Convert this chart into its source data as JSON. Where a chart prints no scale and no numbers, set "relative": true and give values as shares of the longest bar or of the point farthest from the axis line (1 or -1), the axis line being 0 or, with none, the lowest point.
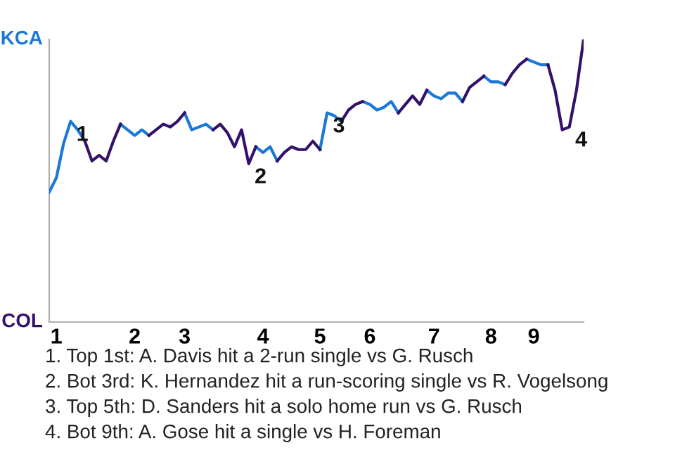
{
  "chart_data": {
    "type": "line",
    "categories": [
      null,
      "1",
      null,
      null,
      null,
      null,
      null,
      null,
      null,
      null,
      null,
      null,
      "2",
      null,
      null,
      null,
      null,
      null,
      null,
      "3",
      null,
      null,
      null,
      null,
      null,
      null,
      null,
      null,
      null,
      null,
      "4",
      null,
      null,
      null,
      null,
      null,
      null,
      null,
      "5",
      null,
      null,
      null,
      null,
      null,
      null,
      "6",
      null,
      null,
      null,
      null,
      null,
      null,
      null,
      null,
      "7",
      null,
      null,
      null,
      null,
      null,
      null,
      null,
      "8",
      null,
      null,
      null,
      null,
      null,
      "9",
      null,
      null,
      null,
      null,
      null,
      null,
      null
    ],
    "series": [
      {
        "name": "KCA",
        "color": "#1a78d6",
        "values": [
          0.46,
          0.51,
          0.63,
          0.71,
          0.68,
          0.64,
          null,
          null,
          null,
          null,
          0.7,
          0.68,
          0.66,
          0.68,
          0.66,
          null,
          null,
          null,
          null,
          0.74,
          0.68,
          0.69,
          0.7,
          0.68,
          null,
          null,
          null,
          null,
          null,
          0.62,
          0.6,
          0.62,
          0.57,
          null,
          null,
          null,
          null,
          null,
          0.61,
          0.74,
          0.73,
          0.71,
          null,
          null,
          0.78,
          0.77,
          0.75,
          0.76,
          0.78,
          0.74,
          null,
          null,
          null,
          0.82,
          0.8,
          0.79,
          0.81,
          0.81,
          0.78,
          null,
          null,
          0.87,
          0.85,
          0.85,
          0.84,
          null,
          null,
          0.93,
          0.92,
          0.91,
          0.91,
          null,
          null,
          null,
          null,
          null
        ],
        "line_style": "solid"
      },
      {
        "name": "COL",
        "color": "#33106b",
        "values": [
          null,
          null,
          null,
          null,
          null,
          0.64,
          0.57,
          0.59,
          0.57,
          0.64,
          0.7,
          null,
          null,
          null,
          0.66,
          0.68,
          0.7,
          0.69,
          0.71,
          0.74,
          null,
          null,
          null,
          0.68,
          0.7,
          0.67,
          0.62,
          0.68,
          0.56,
          0.62,
          null,
          null,
          0.57,
          0.6,
          0.62,
          0.61,
          0.61,
          0.64,
          0.61,
          null,
          null,
          0.71,
          0.75,
          0.77,
          0.78,
          null,
          null,
          null,
          null,
          0.74,
          0.77,
          0.8,
          0.77,
          0.82,
          null,
          null,
          null,
          null,
          0.78,
          0.83,
          0.85,
          0.87,
          null,
          null,
          0.84,
          0.88,
          0.91,
          0.93,
          null,
          null,
          0.91,
          0.82,
          0.68,
          0.69,
          0.82,
          1.0
        ]
      }
    ],
    "relative": true,
    "marker": "none",
    "line_style": "solid",
    "annotations": [
      "1",
      "2",
      "3",
      "4",
      "1. Top 1st: A. Davis hit a 2-run single vs G. Rusch",
      "2. Bot 3rd: K. Hernandez hit a run-scoring single vs R. Vogelsong",
      "3. Top 5th: D. Sanders hit a solo home run vs G. Rusch",
      "4. Bot 9th: A. Gose hit a single vs H. Foreman"
    ]
  }
}
